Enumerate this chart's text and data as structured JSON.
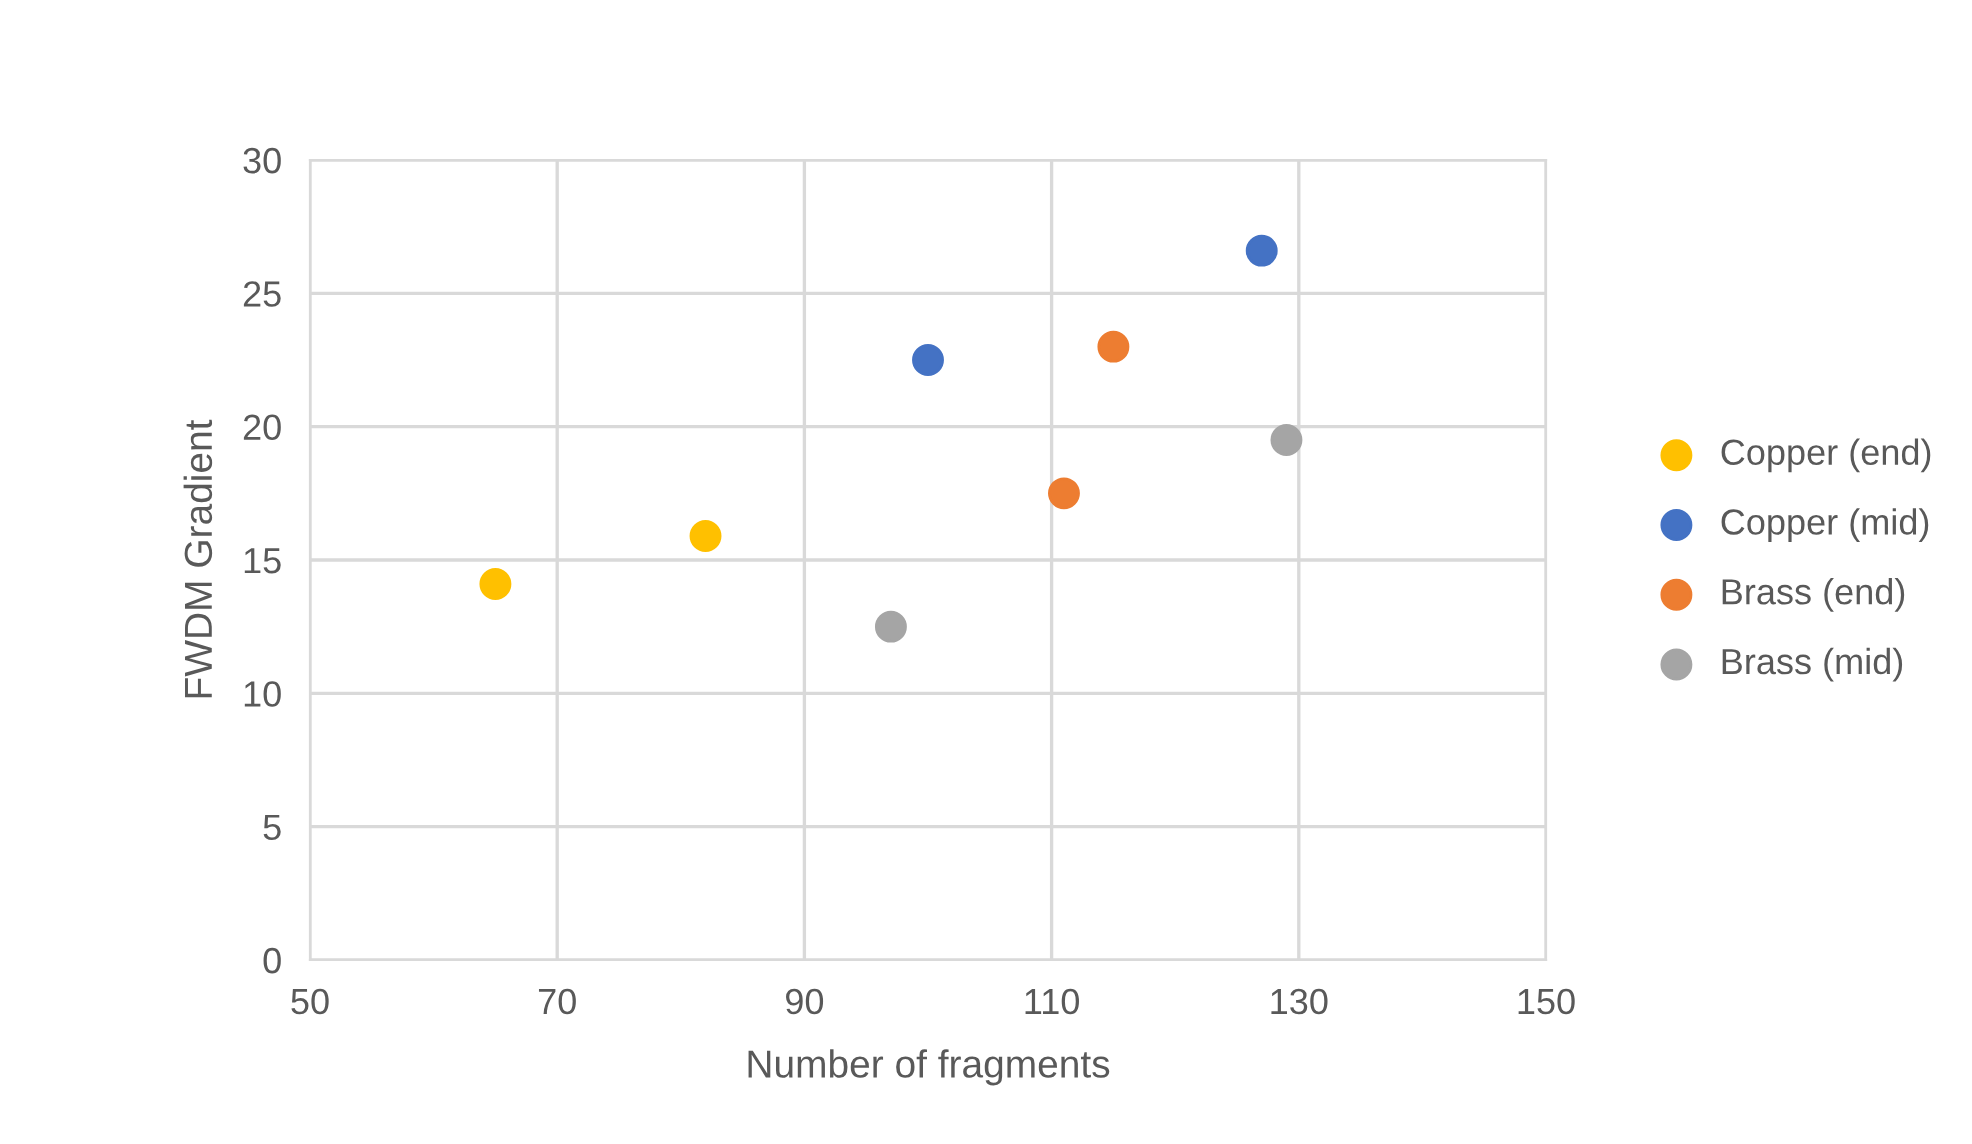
{
  "chart_data": {
    "type": "scatter",
    "xlabel": "Number of fragments",
    "ylabel": "FWDM Gradient",
    "xlim": [
      50,
      150
    ],
    "xticks": [
      50,
      70,
      90,
      110,
      130,
      150
    ],
    "ylim": [
      0,
      30
    ],
    "yticks": [
      0,
      5,
      10,
      15,
      20,
      25,
      30
    ],
    "grid": true,
    "legend": "right",
    "marker": "circle",
    "series": [
      {
        "name": "Copper (end)",
        "color": "#ffc000",
        "x": [
          65,
          82
        ],
        "values": [
          14.1,
          15.9
        ]
      },
      {
        "name": "Copper (mid)",
        "color": "#4472c4",
        "x": [
          100,
          127
        ],
        "values": [
          22.5,
          26.6
        ]
      },
      {
        "name": "Brass (end)",
        "color": "#ed7d31",
        "x": [
          115,
          111
        ],
        "values": [
          23.0,
          17.5
        ]
      },
      {
        "name": "Brass (mid)",
        "color": "#a5a5a5",
        "x": [
          97,
          129
        ],
        "values": [
          12.5,
          19.5
        ]
      }
    ]
  }
}
